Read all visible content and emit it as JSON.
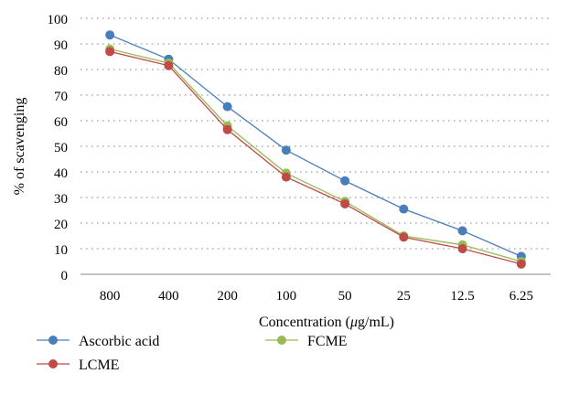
{
  "chart_data": {
    "type": "line",
    "title": "",
    "xlabel": "Concentration (μg/mL)",
    "xlabel_parts": [
      "Concentration (",
      "μ",
      "g/mL)"
    ],
    "ylabel": "% of scavenging",
    "categories": [
      "800",
      "400",
      "200",
      "100",
      "50",
      "25",
      "12.5",
      "6.25"
    ],
    "ylim": [
      0,
      100
    ],
    "yticks": [
      "0",
      "10",
      "20",
      "30",
      "40",
      "50",
      "60",
      "70",
      "80",
      "90",
      "100"
    ],
    "grid": "horizontal dotted",
    "legend_position": "bottom-left",
    "series": [
      {
        "name": "Ascorbic acid",
        "color": "#4a7ebb",
        "values": [
          93.5,
          84,
          65.5,
          48.5,
          36.5,
          25.5,
          17,
          7
        ]
      },
      {
        "name": "LCME",
        "color": "#be4b48",
        "values": [
          87,
          81.5,
          56.5,
          38,
          27.5,
          14.5,
          10,
          4
        ]
      },
      {
        "name": "FCME",
        "color": "#98b954",
        "values": [
          88,
          82.5,
          58,
          39.5,
          28.5,
          15,
          11.5,
          5
        ]
      }
    ]
  }
}
